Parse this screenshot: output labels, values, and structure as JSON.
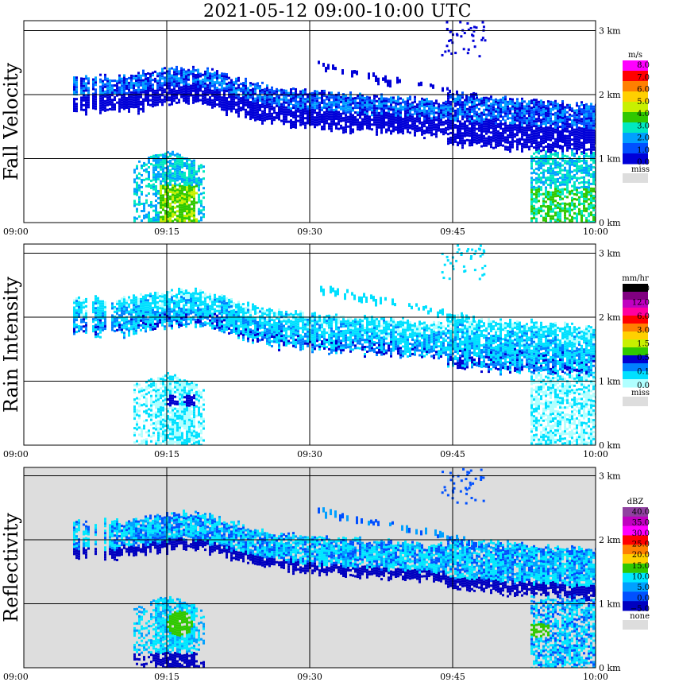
{
  "title": "2021-05-12   09:00-10:00 UTC",
  "chart_data": [
    {
      "type": "heatmap",
      "ylabel": "Fall Velocity",
      "x_ticks": [
        "09:00",
        "09:15",
        "09:30",
        "09:45",
        "10:00"
      ],
      "height_ticks": [
        "0 km",
        "1 km",
        "2 km",
        "3 km"
      ],
      "ylim_km": [
        0,
        3.15
      ],
      "grid": true,
      "legend": {
        "placement": "right",
        "unit": "m/s",
        "labels": [
          "8.0",
          "7.0",
          "6.0",
          "5.0",
          "4.0",
          "3.0",
          "2.0",
          "1.0",
          "0.0",
          "miss"
        ],
        "colors": [
          "#ff00ff",
          "#ff0000",
          "#ff8000",
          "#ffd000",
          "#c8f000",
          "#30c800",
          "#00e8c0",
          "#00a0ff",
          "#0050ff",
          "#0000d8",
          "#dddddd"
        ]
      }
    },
    {
      "type": "heatmap",
      "ylabel": "Rain Intensity",
      "x_ticks": [
        "09:00",
        "09:15",
        "09:30",
        "09:45",
        "10:00"
      ],
      "height_ticks": [
        "0 km",
        "1 km",
        "2 km",
        "3 km"
      ],
      "ylim_km": [
        0,
        3.15
      ],
      "grid": true,
      "legend": {
        "placement": "right",
        "unit": "mm/hr",
        "labels": [
          "48.0",
          "12.0",
          "6.0",
          "3.0",
          "1.5",
          "0.5",
          "0.1",
          "0.0",
          "miss"
        ],
        "colors": [
          "#000000",
          "#800080",
          "#c000c0",
          "#ff00a0",
          "#ff0000",
          "#ff8000",
          "#ffd000",
          "#c8f000",
          "#30c800",
          "#0000d0",
          "#0080ff",
          "#00e0ff",
          "#b0ffff",
          "#dddddd"
        ]
      }
    },
    {
      "type": "heatmap",
      "ylabel": "Reflectivity",
      "x_ticks": [
        "09:00",
        "09:15",
        "09:30",
        "09:45",
        "10:00"
      ],
      "height_ticks": [
        "0 km",
        "1 km",
        "2 km",
        "3 km"
      ],
      "ylim_km": [
        0,
        3.15
      ],
      "grid": true,
      "legend": {
        "placement": "right",
        "unit": "dBZ",
        "labels": [
          "40.0",
          "35.0",
          "30.0",
          "25.0",
          "20.0",
          "15.0",
          "10.0",
          "5.0",
          "0.0",
          "−5.0",
          "none"
        ],
        "colors": [
          "#9040a0",
          "#c000c0",
          "#ff00ff",
          "#ff0000",
          "#ff8000",
          "#ffd000",
          "#30c800",
          "#00e8ff",
          "#00a0ff",
          "#0050ff",
          "#0000c0",
          "#dddddd"
        ]
      }
    }
  ]
}
